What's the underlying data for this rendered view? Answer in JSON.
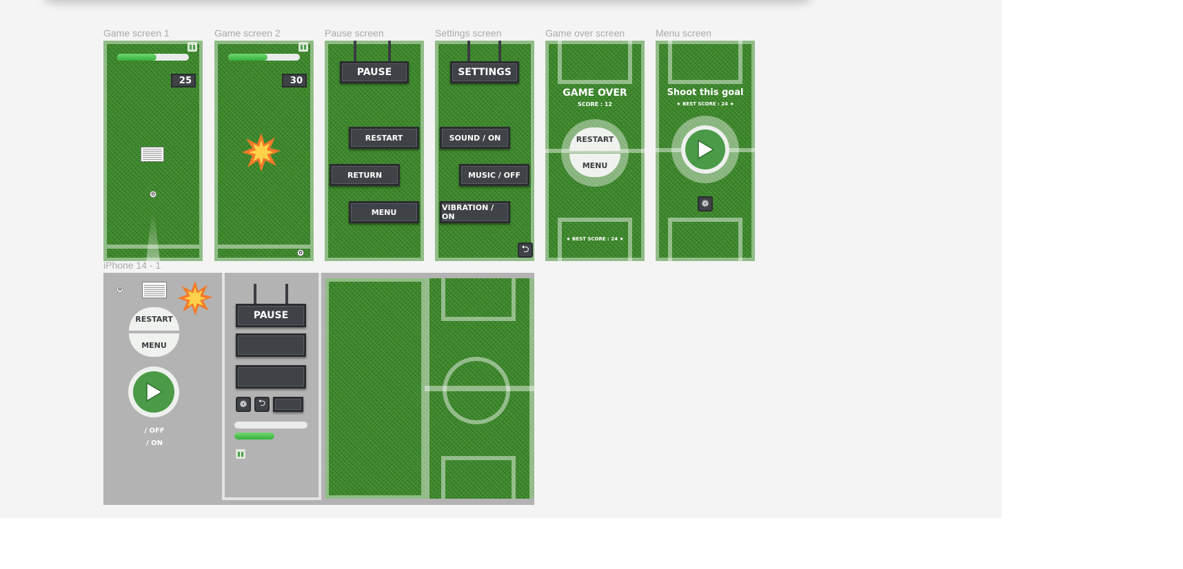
{
  "frames": {
    "game1": {
      "label": "Game screen 1",
      "score": "25"
    },
    "game2": {
      "label": "Game screen 2",
      "score": "30"
    },
    "pause": {
      "label": "Pause screen",
      "title": "PAUSE",
      "restart": "RESTART",
      "return": "RETURN",
      "menu": "MENU"
    },
    "settings": {
      "label": "Settings  screen",
      "title": "SETTINGS",
      "sound": "SOUND / ON",
      "music": "MUSIC / OFF",
      "vibration": "VIBRATION / ON"
    },
    "gameover": {
      "label": "Game over screen",
      "title": "GAME OVER",
      "score": "SCORE : 12",
      "restart": "RESTART",
      "menu": "MENU",
      "best": "★  BEST SCORE : 24  ★"
    },
    "menu": {
      "label": "Menu screen",
      "title": "Shoot this goal",
      "best": "★  BEST SCORE : 24  ★"
    },
    "assets": {
      "label": "iPhone 14 - 1",
      "restart": "RESTART",
      "menu": "MENU",
      "off": "/ OFF",
      "on": "/ ON",
      "pause": "PAUSE"
    }
  },
  "progress": {
    "game1": 0.55,
    "game2": 0.55,
    "assets": 0.55
  },
  "colors": {
    "grass": "#3d8a2c",
    "sign": "#3f4246",
    "accent_green": "#4a9a48",
    "canvas": "#f4f4f4",
    "asset_bg": "#b3b3b3"
  },
  "icons": [
    "soccer-ball-icon",
    "goal-net-icon",
    "explosion-icon",
    "play-icon",
    "pause-icon",
    "fingerprint-icon",
    "back-arrow-icon"
  ]
}
